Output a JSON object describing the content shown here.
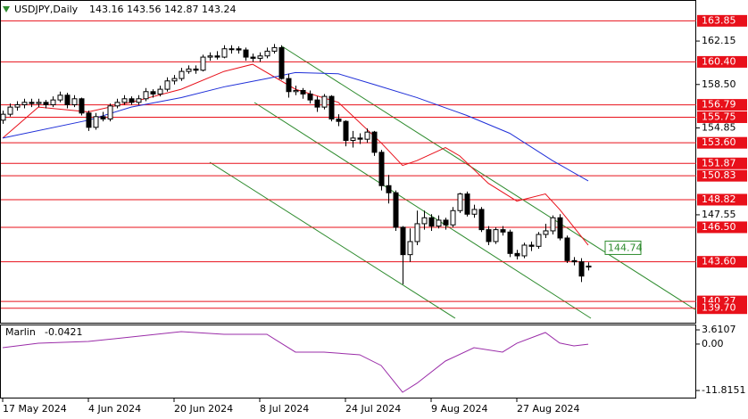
{
  "chart_data": {
    "type": "candlestick",
    "symbol": "USDJPY,Daily",
    "ohlc_text": "143.16 143.56 142.87 143.24",
    "xlim": [
      -0.375,
      97.125
    ],
    "ylim": [
      138.48,
      165.6
    ],
    "yticks": [
      162.15,
      {
        "value": 158.5,
        "label": "158.50"
      },
      154.85,
      147.55
    ],
    "x_labels": [
      {
        "value": 0,
        "label": "17 May 2024"
      },
      {
        "value": 12,
        "label": "4 Jun 2024"
      },
      {
        "value": 24,
        "label": "20 Jun 2024"
      },
      {
        "value": 36,
        "label": "8 Jul 2024"
      },
      {
        "value": 48,
        "label": "24 Jul 2024"
      },
      {
        "value": 60,
        "label": "9 Aug 2024"
      },
      {
        "value": 72,
        "label": "27 Aug 2024"
      }
    ],
    "open": [
      155.5,
      156.0,
      156.6,
      156.8,
      157.0,
      156.9,
      157.0,
      156.8,
      157.2,
      157.6,
      156.8,
      157.3,
      156.1,
      154.9,
      155.8,
      155.6,
      156.7,
      157.0,
      157.3,
      157.0,
      157.3,
      157.9,
      157.7,
      158.1,
      158.8,
      159.0,
      159.6,
      159.8,
      159.7,
      160.8,
      160.9,
      160.8,
      161.5,
      161.5,
      161.4,
      160.8,
      160.7,
      160.9,
      161.3,
      161.6,
      159.0,
      157.9,
      158.0,
      157.7,
      157.2,
      156.6,
      157.5,
      155.6,
      155.4,
      153.8,
      154.0,
      153.9,
      154.5,
      152.8,
      150.0,
      149.4,
      146.5,
      144.2,
      145.3,
      146.8,
      147.3,
      146.6,
      147.1,
      146.7,
      147.9,
      149.3,
      147.6,
      148.0,
      146.3,
      145.3,
      146.3,
      146.1,
      144.3,
      144.1,
      145.0,
      144.9,
      145.9,
      146.2,
      147.3,
      145.6,
      143.7,
      143.6,
      143.16
    ],
    "high": [
      156.3,
      156.9,
      157.1,
      157.3,
      157.3,
      157.3,
      157.2,
      157.5,
      157.9,
      157.8,
      157.6,
      157.4,
      156.3,
      156.1,
      156.2,
      156.9,
      157.3,
      157.6,
      157.5,
      157.6,
      158.2,
      158.1,
      158.4,
      159.1,
      159.3,
      159.9,
      160.1,
      160.1,
      161.0,
      161.2,
      161.3,
      161.8,
      161.8,
      161.7,
      161.6,
      161.1,
      161.2,
      161.6,
      161.9,
      161.8,
      159.4,
      158.4,
      158.2,
      158.0,
      157.5,
      157.7,
      157.6,
      156.0,
      155.5,
      154.6,
      154.4,
      154.8,
      154.6,
      153.0,
      150.9,
      149.6,
      146.6,
      146.4,
      147.9,
      147.9,
      147.6,
      147.5,
      147.3,
      148.2,
      149.4,
      149.5,
      148.4,
      148.2,
      146.6,
      146.5,
      146.6,
      146.3,
      144.6,
      145.2,
      145.3,
      146.1,
      146.8,
      147.5,
      147.6,
      145.8,
      144.0,
      143.9,
      143.56
    ],
    "low": [
      155.2,
      155.8,
      156.3,
      156.5,
      156.6,
      156.6,
      156.5,
      156.6,
      157.0,
      156.5,
      156.6,
      155.9,
      154.6,
      154.7,
      155.4,
      155.4,
      156.5,
      156.8,
      156.8,
      156.8,
      157.1,
      157.4,
      157.5,
      157.9,
      158.5,
      158.8,
      159.4,
      159.4,
      159.6,
      160.5,
      160.6,
      160.7,
      161.1,
      161.1,
      160.5,
      160.4,
      160.4,
      160.7,
      161.1,
      158.9,
      157.4,
      157.6,
      157.3,
      156.9,
      156.2,
      156.4,
      155.4,
      155.0,
      153.3,
      153.2,
      153.5,
      153.6,
      152.5,
      149.6,
      148.5,
      146.2,
      141.7,
      143.6,
      145.0,
      146.3,
      146.2,
      146.4,
      146.3,
      146.5,
      147.7,
      147.4,
      147.3,
      146.1,
      145.0,
      145.1,
      145.8,
      144.0,
      143.8,
      143.9,
      144.5,
      144.7,
      145.6,
      145.9,
      145.4,
      143.5,
      143.3,
      141.9,
      142.87
    ],
    "close": [
      156.0,
      156.6,
      156.8,
      157.0,
      156.9,
      157.0,
      156.8,
      157.2,
      157.6,
      156.8,
      157.3,
      156.1,
      154.9,
      155.8,
      155.6,
      156.7,
      157.0,
      157.3,
      157.0,
      157.3,
      157.9,
      157.7,
      158.1,
      158.8,
      159.0,
      159.6,
      159.8,
      159.7,
      160.8,
      160.9,
      160.8,
      161.5,
      161.5,
      161.4,
      160.8,
      160.7,
      160.9,
      161.3,
      161.6,
      159.0,
      157.9,
      158.0,
      157.7,
      157.2,
      156.6,
      157.5,
      155.6,
      155.4,
      153.8,
      154.0,
      153.9,
      154.5,
      152.8,
      150.0,
      149.4,
      146.5,
      144.2,
      145.3,
      146.8,
      147.3,
      146.6,
      147.1,
      146.7,
      147.9,
      149.3,
      147.6,
      148.0,
      146.3,
      145.3,
      146.3,
      146.1,
      144.3,
      144.1,
      145.0,
      144.9,
      145.9,
      146.2,
      147.3,
      145.6,
      143.7,
      143.6,
      142.4,
      143.24
    ],
    "ma_lines": [
      {
        "color": "#e8101a",
        "x": [
          0,
          5,
          12,
          18,
          25,
          31,
          35,
          41,
          47,
          53,
          56,
          58,
          62,
          64,
          68,
          72,
          76,
          78,
          82
        ],
        "values": [
          154.0,
          156.6,
          156.2,
          157.0,
          158.1,
          159.6,
          160.2,
          158.1,
          157.0,
          153.6,
          151.7,
          152.1,
          153.2,
          152.5,
          150.2,
          148.7,
          149.3,
          148.0,
          145.0
        ]
      },
      {
        "color": "#1f2fd8",
        "x": [
          0,
          12,
          18,
          25,
          31,
          37,
          41,
          47,
          52,
          58,
          65,
          71,
          77,
          82
        ],
        "values": [
          154.0,
          155.5,
          156.6,
          157.4,
          158.3,
          159.0,
          159.5,
          159.4,
          158.5,
          157.4,
          155.9,
          154.4,
          152.1,
          150.4
        ]
      }
    ],
    "levels": [
      163.85,
      160.4,
      156.79,
      155.75,
      153.6,
      151.87,
      150.83,
      148.82,
      146.5,
      143.6,
      140.27,
      139.7
    ],
    "level_labels": [
      "163.85",
      "160.40",
      "156.79",
      "155.75",
      "153.60",
      "151.87",
      "150.83",
      "148.82",
      "146.50",
      "143.60",
      "140.27",
      "139.70"
    ],
    "level_color": "#e8101a",
    "annotation": {
      "value": 144.74,
      "label": "144.74"
    },
    "indicator": {
      "name": "Marlin",
      "value": -0.0421,
      "color": "#9a2ca8",
      "ylim": [
        -13.85,
        4.75
      ],
      "yticks": [
        3.6107,
        {
          "value": 0,
          "label": "0.00"
        },
        -11.8151
      ],
      "x": [
        0,
        5,
        12,
        18,
        25,
        31,
        37,
        41,
        45,
        50,
        53,
        56,
        58,
        62,
        66,
        70,
        72,
        76,
        78,
        80,
        82
      ],
      "values": [
        -0.92,
        0.21,
        0.67,
        1.8,
        3.16,
        2.48,
        2.48,
        -2.05,
        -2.05,
        -2.73,
        -5.45,
        -12.26,
        -9.99,
        -4.32,
        -0.92,
        -2.05,
        0.21,
        2.94,
        0.26,
        -0.47,
        -0.04
      ]
    }
  }
}
